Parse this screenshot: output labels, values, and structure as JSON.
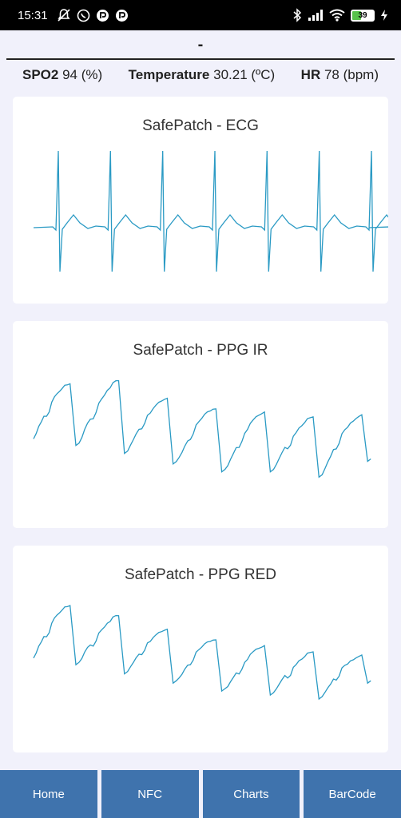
{
  "status_bar": {
    "time": "15:31",
    "battery": "39",
    "icons_left": [
      "mute-notifications-icon",
      "whatsapp-icon",
      "app-notification-icon",
      "app-notification-icon"
    ],
    "icons_right": [
      "bluetooth-icon",
      "signal-icon",
      "wifi-icon",
      "battery-icon",
      "charging-icon"
    ]
  },
  "header": {
    "title": "-"
  },
  "vitals": {
    "spo2_label": "SPO2",
    "spo2_value": "94 (%)",
    "temp_label": "Temperature",
    "temp_value": "30.21 (ºC)",
    "hr_label": "HR",
    "hr_value": "78 (bpm)"
  },
  "colors": {
    "line": "#2a9ac4",
    "nav": "#3f73ad",
    "background": "#f1f1fb"
  },
  "chart_data": [
    {
      "type": "line",
      "title": "SafePatch - ECG",
      "xlabel": "",
      "ylabel": "",
      "grid": false,
      "beats": 7,
      "shape": "ecg"
    },
    {
      "type": "line",
      "title": "SafePatch - PPG IR",
      "xlabel": "",
      "ylabel": "",
      "grid": false,
      "peaks": [
        0.88,
        0.9,
        0.78,
        0.7,
        0.66,
        0.63,
        0.65
      ],
      "troughs": [
        0.42,
        0.36,
        0.28,
        0.22,
        0.22,
        0.18,
        0.3
      ],
      "shape": "ppg"
    },
    {
      "type": "line",
      "title": "SafePatch - PPG RED",
      "xlabel": "",
      "ylabel": "",
      "grid": false,
      "peaks": [
        0.9,
        0.82,
        0.73,
        0.65,
        0.59,
        0.55,
        0.53
      ],
      "troughs": [
        0.46,
        0.39,
        0.32,
        0.26,
        0.23,
        0.2,
        0.32
      ],
      "shape": "ppg"
    }
  ],
  "nav": {
    "items": [
      "Home",
      "NFC",
      "Charts",
      "BarCode"
    ]
  }
}
